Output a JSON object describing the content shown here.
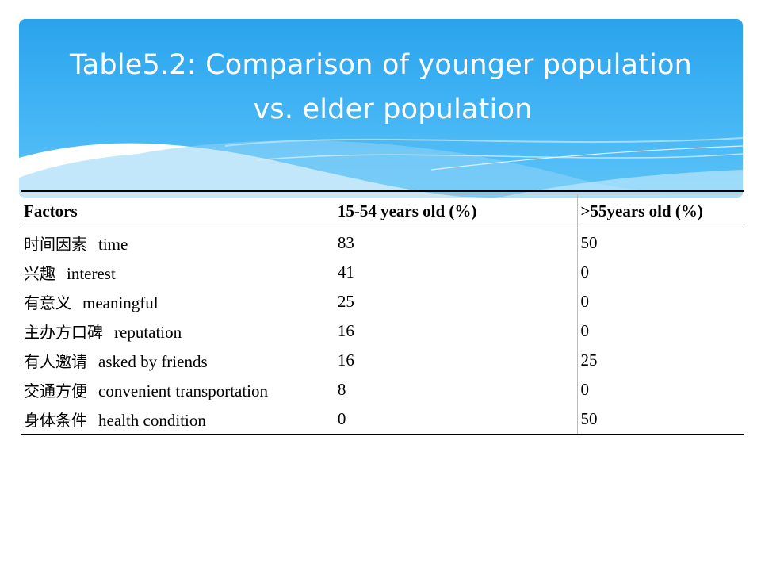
{
  "slide": {
    "title_line1": "Table5.2: Comparison of younger population",
    "title_line2": "vs. elder population"
  },
  "table": {
    "headers": [
      "Factors",
      "15-54 years old (%)",
      ">55years old (%)"
    ],
    "rows": [
      {
        "factor_zh": "时间因素",
        "factor_en": "time",
        "young": "83",
        "elder": "50"
      },
      {
        "factor_zh": "兴趣",
        "factor_en": "interest",
        "young": "41",
        "elder": "0"
      },
      {
        "factor_zh": "有意义",
        "factor_en": "meaningful",
        "young": "25",
        "elder": "0"
      },
      {
        "factor_zh": "主办方口碑",
        "factor_en": "reputation",
        "young": "16",
        "elder": "0"
      },
      {
        "factor_zh": "有人邀请",
        "factor_en": "asked by friends",
        "young": "16",
        "elder": "25"
      },
      {
        "factor_zh": "交通方便",
        "factor_en": "convenient transportation",
        "young": "8",
        "elder": "0"
      },
      {
        "factor_zh": "身体条件",
        "factor_en": "health condition",
        "young": "0",
        "elder": "50"
      }
    ]
  },
  "colors": {
    "banner_top": "#2aa3ec",
    "banner_bottom": "#5cc3f7",
    "title_text": "#ffffff",
    "table_text": "#000000"
  }
}
